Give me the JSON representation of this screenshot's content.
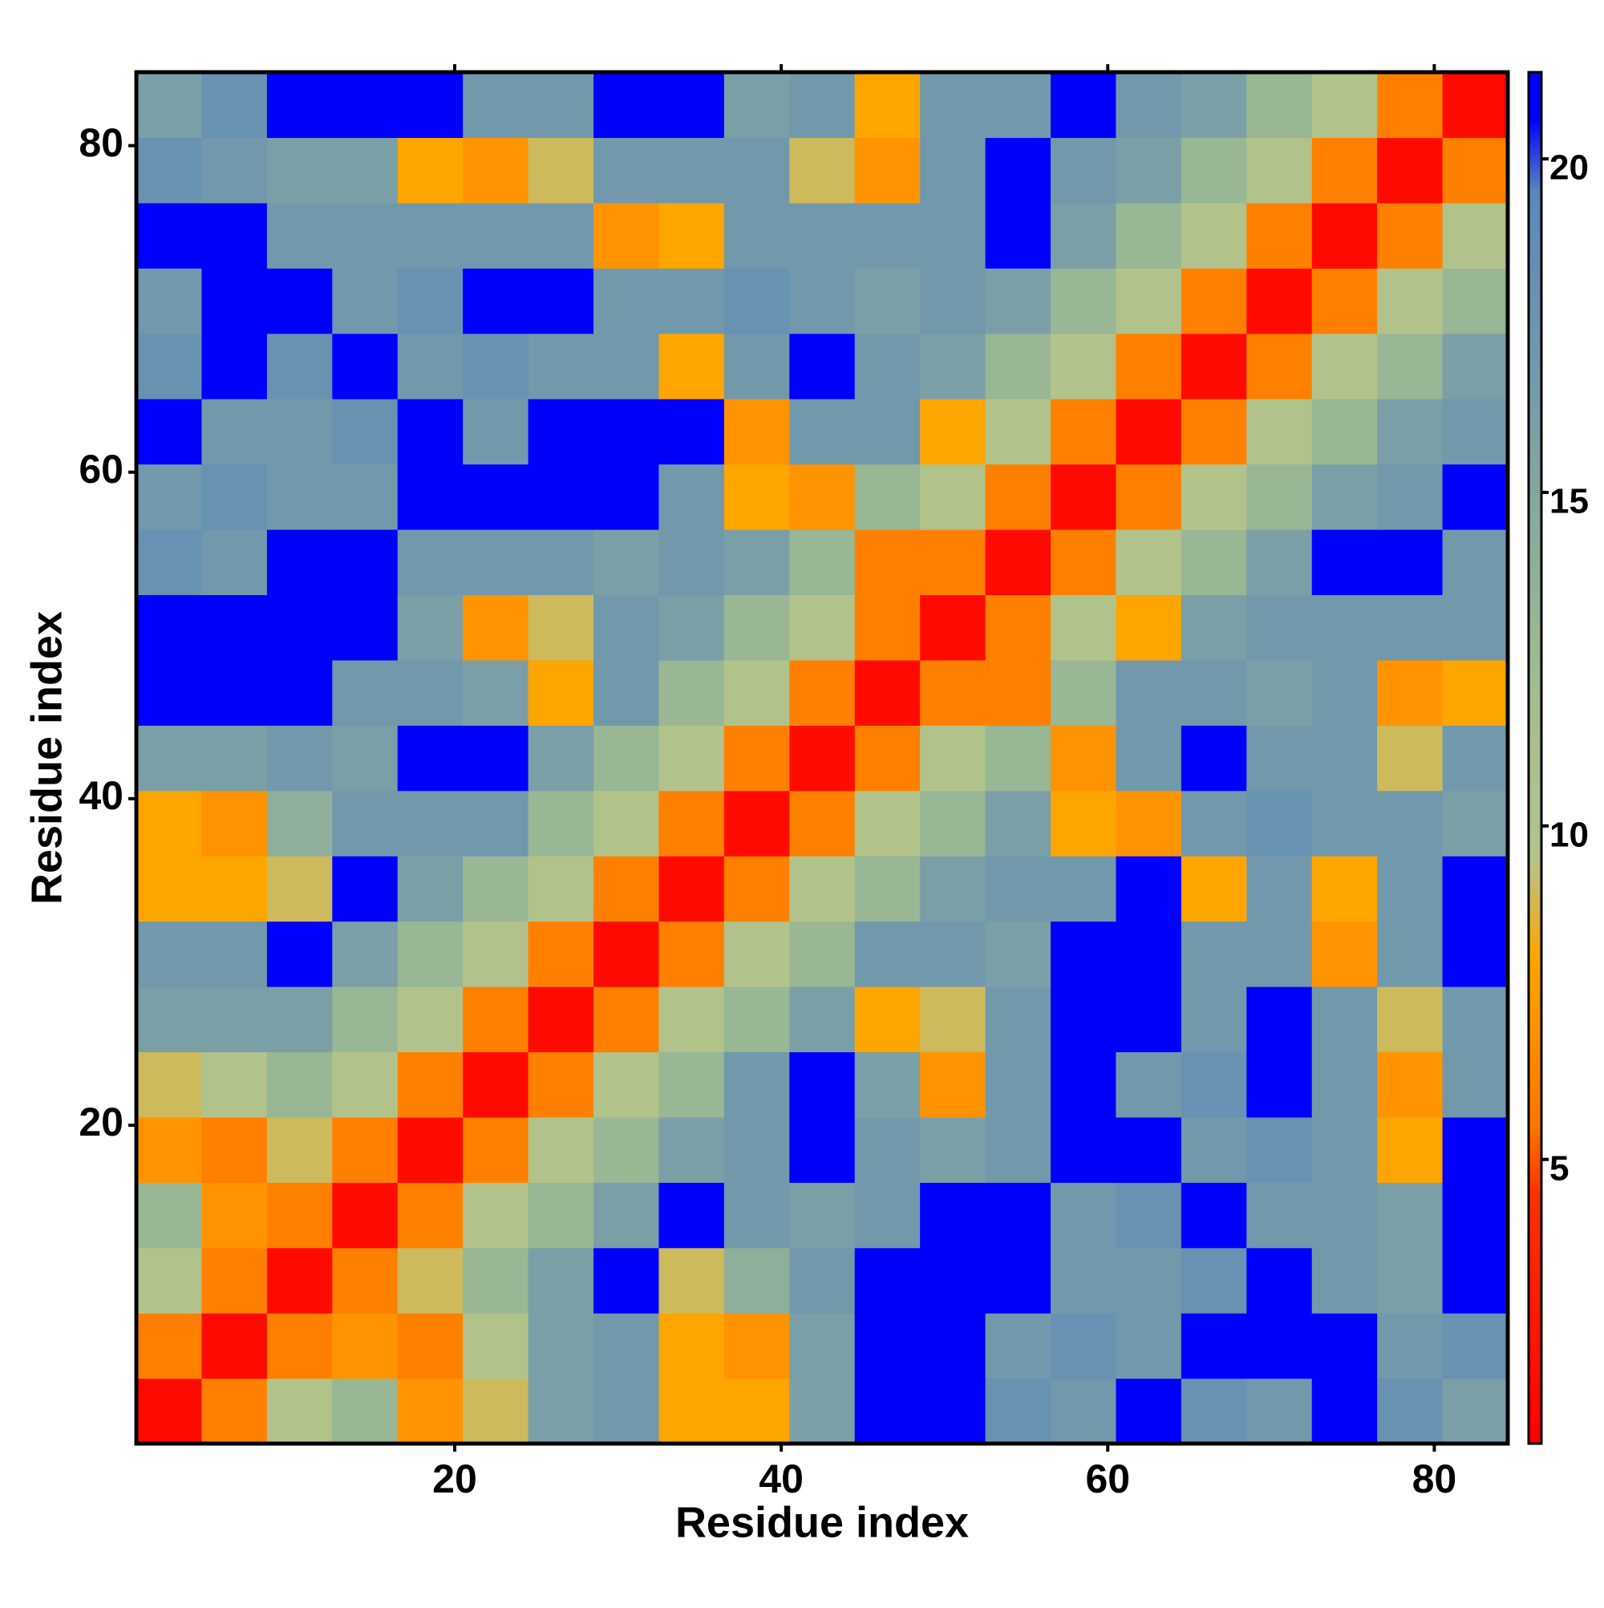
{
  "chart_data": {
    "type": "heatmap",
    "x_label": "Residue index",
    "y_label": "Residue index",
    "xlim": [
      0.5,
      84.5
    ],
    "ylim": [
      0.5,
      84.5
    ],
    "xticks": [
      20,
      40,
      60,
      80
    ],
    "yticks": [
      20,
      40,
      60,
      80
    ],
    "x": [
      1,
      5,
      9,
      13,
      17,
      21,
      25,
      29,
      33,
      37,
      41,
      45,
      49,
      53,
      57,
      61,
      65,
      69,
      73,
      77,
      81
    ],
    "y": [
      1,
      5,
      9,
      13,
      17,
      21,
      25,
      29,
      33,
      37,
      41,
      45,
      49,
      53,
      57,
      61,
      65,
      69,
      73,
      77,
      81
    ],
    "z": [
      [
        1.5,
        6,
        10,
        13,
        7,
        9,
        16,
        17,
        8,
        8,
        16,
        21,
        21,
        18,
        17,
        21,
        18,
        17,
        21,
        18,
        16
      ],
      [
        6,
        1.5,
        6,
        7,
        6,
        10,
        16,
        17,
        8,
        7,
        16,
        21,
        21,
        17,
        18,
        17,
        21,
        21,
        21,
        17,
        18
      ],
      [
        10,
        6,
        1.5,
        6,
        9,
        13,
        16,
        21,
        9,
        14,
        17,
        21,
        21,
        21,
        17,
        17,
        18,
        21,
        17,
        16,
        21
      ],
      [
        13,
        7,
        6,
        1.5,
        6,
        10,
        13,
        16,
        21,
        17,
        16,
        17,
        21,
        21,
        17,
        18,
        21,
        17,
        17,
        16,
        21
      ],
      [
        7,
        6,
        9,
        6,
        1.5,
        6,
        10,
        13,
        16,
        17,
        21,
        17,
        16,
        17,
        21,
        21,
        17,
        18,
        17,
        8,
        21
      ],
      [
        9,
        10,
        13,
        10,
        6,
        1.5,
        6,
        10,
        13,
        17,
        21,
        16,
        7,
        17,
        21,
        17,
        18,
        21,
        17,
        7,
        17
      ],
      [
        16,
        16,
        16,
        13,
        10,
        6,
        1.5,
        6,
        10,
        13,
        16,
        8,
        9,
        17,
        21,
        21,
        17,
        21,
        17,
        9,
        17
      ],
      [
        17,
        17,
        21,
        16,
        13,
        10,
        6,
        1.5,
        6,
        10,
        13,
        17,
        17,
        16,
        21,
        21,
        17,
        17,
        7,
        17,
        21
      ],
      [
        8,
        8,
        9,
        21,
        16,
        13,
        10,
        6,
        1.5,
        6,
        10,
        13,
        16,
        17,
        17,
        21,
        8,
        17,
        8,
        17,
        21
      ],
      [
        8,
        7,
        14,
        17,
        17,
        17,
        13,
        10,
        6,
        1.5,
        6,
        10,
        13,
        16,
        8,
        7,
        17,
        18,
        17,
        17,
        16
      ],
      [
        16,
        16,
        17,
        16,
        21,
        21,
        16,
        13,
        10,
        6,
        1.5,
        6,
        10,
        13,
        7,
        17,
        21,
        17,
        17,
        9,
        17
      ],
      [
        21,
        21,
        21,
        17,
        17,
        16,
        8,
        17,
        13,
        10,
        6,
        1.5,
        6,
        6,
        13,
        17,
        17,
        16,
        17,
        7,
        8
      ],
      [
        21,
        21,
        21,
        21,
        16,
        7,
        9,
        17,
        16,
        13,
        10,
        6,
        1.5,
        6,
        10,
        8,
        16,
        17,
        17,
        17,
        17
      ],
      [
        18,
        17,
        21,
        21,
        17,
        17,
        17,
        16,
        17,
        16,
        13,
        6,
        6,
        1.5,
        6,
        10,
        13,
        16,
        21,
        21,
        17
      ],
      [
        17,
        18,
        17,
        17,
        21,
        21,
        21,
        21,
        17,
        8,
        7,
        13,
        10,
        6,
        1.5,
        6,
        10,
        13,
        16,
        17,
        21
      ],
      [
        21,
        17,
        17,
        18,
        21,
        17,
        21,
        21,
        21,
        7,
        17,
        17,
        8,
        10,
        6,
        1.5,
        6,
        10,
        13,
        16,
        17
      ],
      [
        18,
        21,
        18,
        21,
        17,
        18,
        17,
        17,
        8,
        17,
        21,
        17,
        16,
        13,
        10,
        6,
        1.5,
        6,
        10,
        13,
        16
      ],
      [
        17,
        21,
        21,
        17,
        18,
        21,
        21,
        17,
        17,
        18,
        17,
        16,
        17,
        16,
        13,
        10,
        6,
        1.5,
        6,
        10,
        13
      ],
      [
        21,
        21,
        17,
        17,
        17,
        17,
        17,
        7,
        8,
        17,
        17,
        17,
        17,
        21,
        16,
        13,
        10,
        6,
        1.5,
        6,
        10
      ],
      [
        18,
        17,
        16,
        16,
        8,
        7,
        9,
        17,
        17,
        17,
        9,
        7,
        17,
        21,
        17,
        16,
        13,
        10,
        6,
        1.5,
        6
      ],
      [
        16,
        18,
        21,
        21,
        21,
        17,
        17,
        21,
        21,
        16,
        17,
        8,
        17,
        17,
        21,
        17,
        16,
        13,
        10,
        6,
        1.5
      ]
    ],
    "zlim": [
      0.74,
      21.3
    ],
    "zticks": [
      5,
      10,
      15,
      20
    ],
    "colorscale": [
      {
        "value": 0.74,
        "color": "#ff0000"
      },
      {
        "value": 4.5,
        "color": "#ff3300"
      },
      {
        "value": 5.5,
        "color": "#ff7700"
      },
      {
        "value": 8,
        "color": "#ffa500"
      },
      {
        "value": 9.5,
        "color": "#b4c48a"
      },
      {
        "value": 12,
        "color": "#a3bd8f"
      },
      {
        "value": 16,
        "color": "#7b9fa6"
      },
      {
        "value": 19.5,
        "color": "#5a88bb"
      },
      {
        "value": 20.6,
        "color": "#0000ff"
      },
      {
        "value": 21.3,
        "color": "#0000ff"
      }
    ]
  }
}
